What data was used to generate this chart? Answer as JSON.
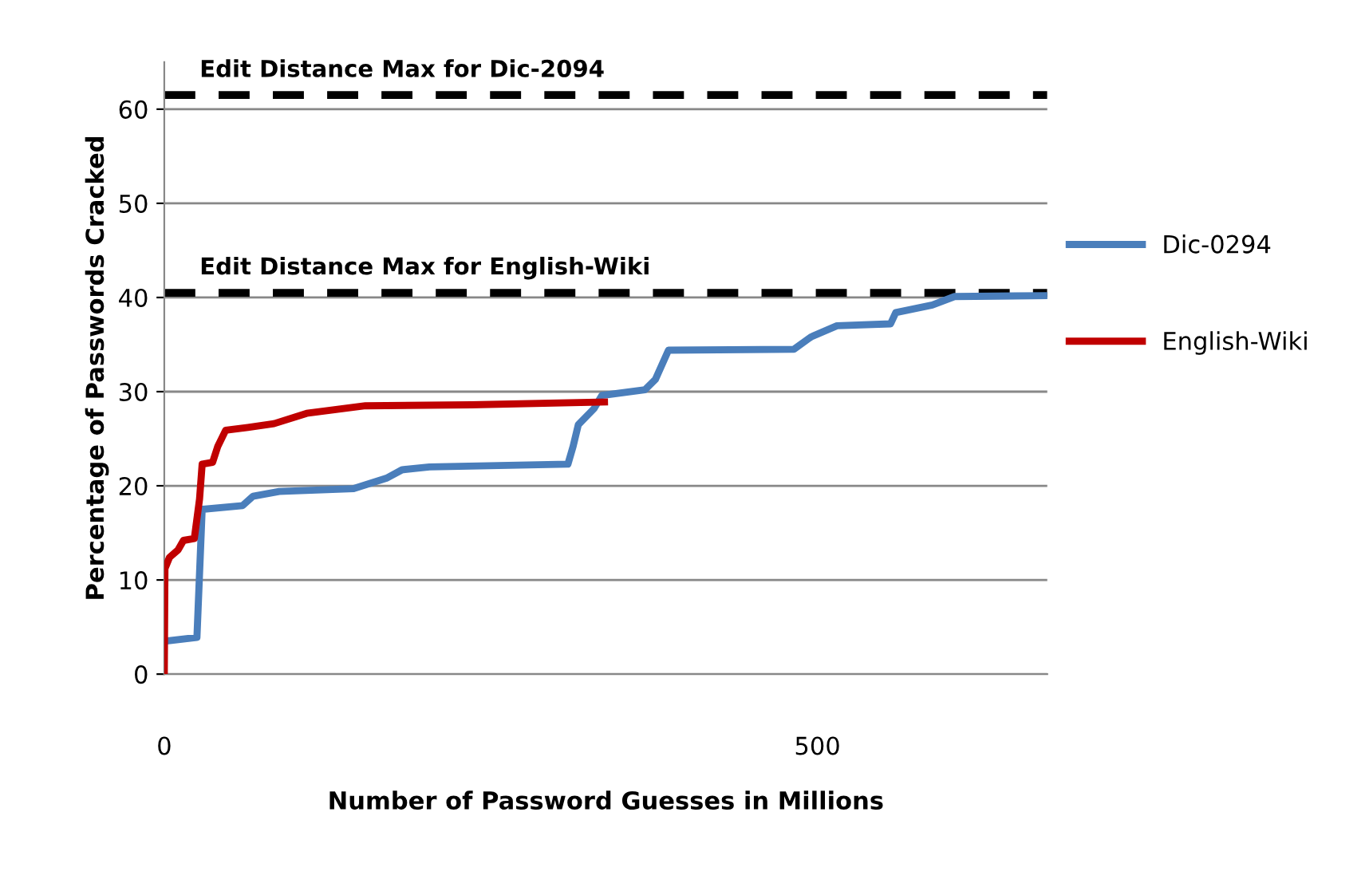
{
  "chart_data": {
    "type": "line",
    "xlabel": "Number of Password Guesses in Millions",
    "ylabel": "Percentage of Passwords Cracked",
    "xlim": [
      0,
      676
    ],
    "xticks": [
      0,
      500
    ],
    "ylim": [
      0,
      65
    ],
    "yticks": [
      0,
      10,
      20,
      30,
      40,
      50,
      60
    ],
    "grid": "y",
    "legend": "right",
    "series": [
      {
        "name": "Dic-0294",
        "color": "#4a7ebb",
        "x": [
          0,
          25,
          29,
          60,
          68,
          88,
          145,
          170,
          182,
          203,
          309,
          313,
          317,
          329,
          335,
          368,
          376,
          386,
          482,
          495,
          515,
          556,
          560,
          588,
          605,
          676
        ],
        "values": [
          3.5,
          3.9,
          17.5,
          17.9,
          18.9,
          19.4,
          19.7,
          20.8,
          21.7,
          22.0,
          22.3,
          24.2,
          26.5,
          28.2,
          29.6,
          30.2,
          31.3,
          34.4,
          34.5,
          35.8,
          37.0,
          37.2,
          38.4,
          39.2,
          40.1,
          40.2
        ]
      },
      {
        "name": "English-Wiki",
        "color": "#c00000",
        "x": [
          0,
          0.5,
          4,
          10.6,
          14.7,
          23,
          27,
          29,
          37,
          41,
          47,
          64,
          84,
          109,
          154,
          235,
          337
        ],
        "values": [
          0,
          11.2,
          12.4,
          13.2,
          14.2,
          14.4,
          18.6,
          22.3,
          22.5,
          24.2,
          25.9,
          26.2,
          26.6,
          27.7,
          28.5,
          28.6,
          28.9
        ]
      }
    ],
    "ref_lines": [
      {
        "axis": "y",
        "value": 61.5,
        "label": "Edit Distance Max for Dic-2094",
        "color": "#000000",
        "line_style": "dashed"
      },
      {
        "axis": "y",
        "value": 40.5,
        "label": "Edit Distance Max for English-Wiki",
        "color": "#000000",
        "line_style": "dashed"
      }
    ]
  }
}
